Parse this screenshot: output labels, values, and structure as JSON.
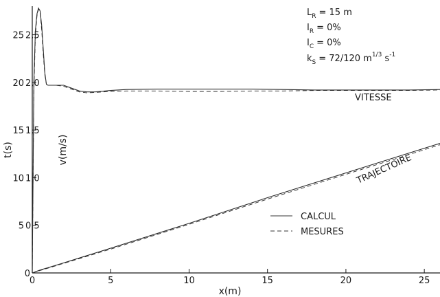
{
  "chart_data": {
    "type": "line",
    "xlabel": "x(m)",
    "ylabel_left": "t(s)",
    "ylabel_inner": "v(m/s)",
    "xlim": [
      0,
      26
    ],
    "ylim_t": [
      0,
      28
    ],
    "ylim_v": [
      0,
      2.8
    ],
    "x_ticks": [
      0,
      5,
      10,
      15,
      20,
      25
    ],
    "t_ticks": [
      0,
      5,
      10,
      15,
      20,
      25
    ],
    "v_ticks": [
      0.5,
      1.0,
      1.5,
      2.0,
      2.5
    ],
    "x_tick_labels": [
      "0",
      "5",
      "10",
      "15",
      "20",
      "25"
    ],
    "t_tick_labels": [
      "0",
      "5",
      "10",
      "15",
      "20",
      "25"
    ],
    "v_tick_labels": [
      "0,5",
      "1,0",
      "1,5",
      "2,0",
      "2,5"
    ],
    "grid": false,
    "legend_position": "center-right",
    "legend": [
      {
        "label": "CALCUL",
        "style": "solid"
      },
      {
        "label": "MESURES",
        "style": "dashed"
      }
    ],
    "annotations": {
      "vitesse": "VITESSE",
      "trajectoire": "TRAJECTOIRE"
    },
    "parameters": {
      "LR_base": "L",
      "LR_sub": "R",
      "LR_val": "= 15 m",
      "IR_base": "I",
      "IR_sub": "R",
      "IR_val": "= 0%",
      "IC_base": "I",
      "IC_sub": "C",
      "IC_val": "= 0%",
      "ks_base": "k",
      "ks_sub": "S",
      "ks_val": "= 72/120  m",
      "ks_sup1": "1/3",
      "ks_unit": " s",
      "ks_sup2": "-1"
    },
    "series": [
      {
        "axis": "v",
        "style": "solid",
        "x": [
          0,
          0.1,
          0.2,
          0.3,
          0.4,
          0.5,
          0.6,
          0.7,
          0.8,
          0.9,
          1.0,
          1.1,
          1.5,
          2.0,
          2.5,
          3.0,
          3.5,
          4.0,
          5.0,
          6.0,
          8.0,
          10.0,
          12.0,
          14.0,
          16.0,
          18.0,
          20.0,
          22.0,
          24.0,
          26.0
        ],
        "y": [
          0,
          2.0,
          2.55,
          2.72,
          2.78,
          2.75,
          2.6,
          2.35,
          2.1,
          1.98,
          1.97,
          1.97,
          1.97,
          1.97,
          1.94,
          1.91,
          1.9,
          1.9,
          1.915,
          1.925,
          1.93,
          1.93,
          1.93,
          1.93,
          1.925,
          1.92,
          1.92,
          1.92,
          1.92,
          1.925
        ]
      },
      {
        "axis": "v",
        "style": "dashed",
        "x": [
          0,
          0.1,
          0.2,
          0.3,
          0.4,
          0.5,
          0.6,
          0.7,
          0.8,
          0.9,
          1.0,
          1.1,
          1.5,
          2.0,
          2.5,
          3.0,
          3.5,
          4.0,
          5.0,
          6.0,
          8.0,
          10.0,
          12.0,
          14.0,
          16.0,
          18.0,
          20.0,
          22.0,
          24.0,
          26.0
        ],
        "y": [
          0,
          1.9,
          2.5,
          2.7,
          2.77,
          2.74,
          2.55,
          2.3,
          2.08,
          1.98,
          1.97,
          1.97,
          1.97,
          1.96,
          1.93,
          1.9,
          1.89,
          1.895,
          1.905,
          1.91,
          1.91,
          1.905,
          1.905,
          1.91,
          1.91,
          1.915,
          1.915,
          1.915,
          1.915,
          1.92
        ]
      },
      {
        "axis": "t",
        "style": "solid",
        "x": [
          0,
          0.5,
          1.0,
          2.0,
          5.0,
          10.0,
          15.0,
          20.0,
          26.0
        ],
        "y": [
          0,
          0.3,
          0.55,
          1.05,
          2.6,
          5.2,
          7.9,
          10.5,
          13.6
        ]
      },
      {
        "axis": "t",
        "style": "dashed",
        "x": [
          0,
          0.5,
          1.0,
          2.0,
          5.0,
          10.0,
          15.0,
          20.0,
          26.0
        ],
        "y": [
          0,
          0.25,
          0.5,
          1.0,
          2.5,
          5.1,
          7.75,
          10.35,
          13.45
        ]
      }
    ]
  }
}
